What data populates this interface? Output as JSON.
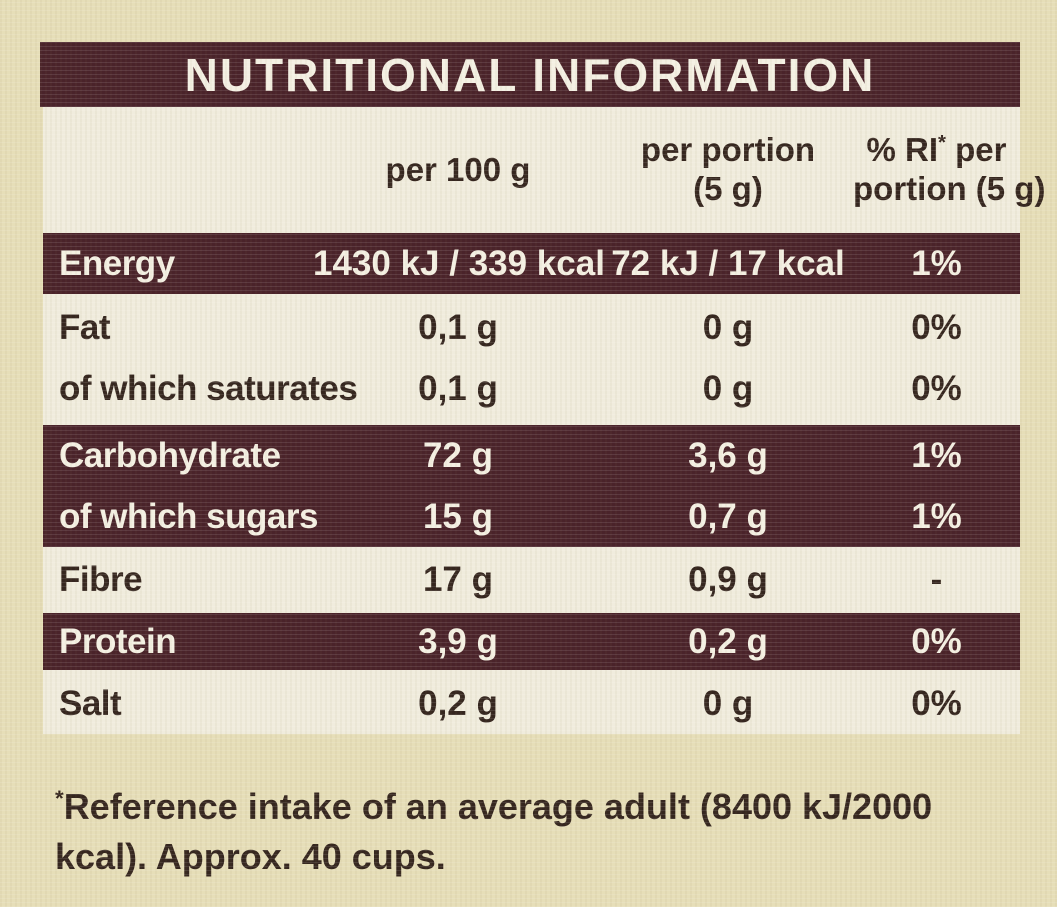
{
  "theme": {
    "bg": "#e6deb8",
    "panel": "#f0ecdd",
    "dark": "#4a232a",
    "ink": "#35261f",
    "on-dark": "#f4f0e3"
  },
  "header": {
    "title": "NUTRITIONAL INFORMATION"
  },
  "columns": {
    "per100": "per 100 g",
    "portion_line1": "per portion",
    "portion_line2": "(5 g)",
    "ri_pre": "% RI",
    "ri_sup": "*",
    "ri_post": " per",
    "ri_line2": "portion (5 g)"
  },
  "rows": [
    {
      "name": "Energy",
      "per100": "1430 kJ / 339 kcal",
      "portion": "72 kJ / 17 kcal",
      "ri": "1%"
    },
    {
      "name": "Fat",
      "per100": "0,1 g",
      "portion": "0 g",
      "ri": "0%"
    },
    {
      "name": "of which saturates",
      "per100": "0,1 g",
      "portion": "0 g",
      "ri": "0%"
    },
    {
      "name": "Carbohydrate",
      "per100": "72 g",
      "portion": "3,6 g",
      "ri": "1%"
    },
    {
      "name": "of which sugars",
      "per100": "15 g",
      "portion": "0,7 g",
      "ri": "1%"
    },
    {
      "name": "Fibre",
      "per100": "17 g",
      "portion": "0,9 g",
      "ri": "-"
    },
    {
      "name": "Protein",
      "per100": "3,9 g",
      "portion": "0,2 g",
      "ri": "0%"
    },
    {
      "name": "Salt",
      "per100": "0,2 g",
      "portion": "0 g",
      "ri": "0%"
    }
  ],
  "footnote": {
    "sup": "*",
    "line1": "Reference intake of an average adult (8400 kJ/2000",
    "line2": "kcal). Approx. 40 cups."
  }
}
